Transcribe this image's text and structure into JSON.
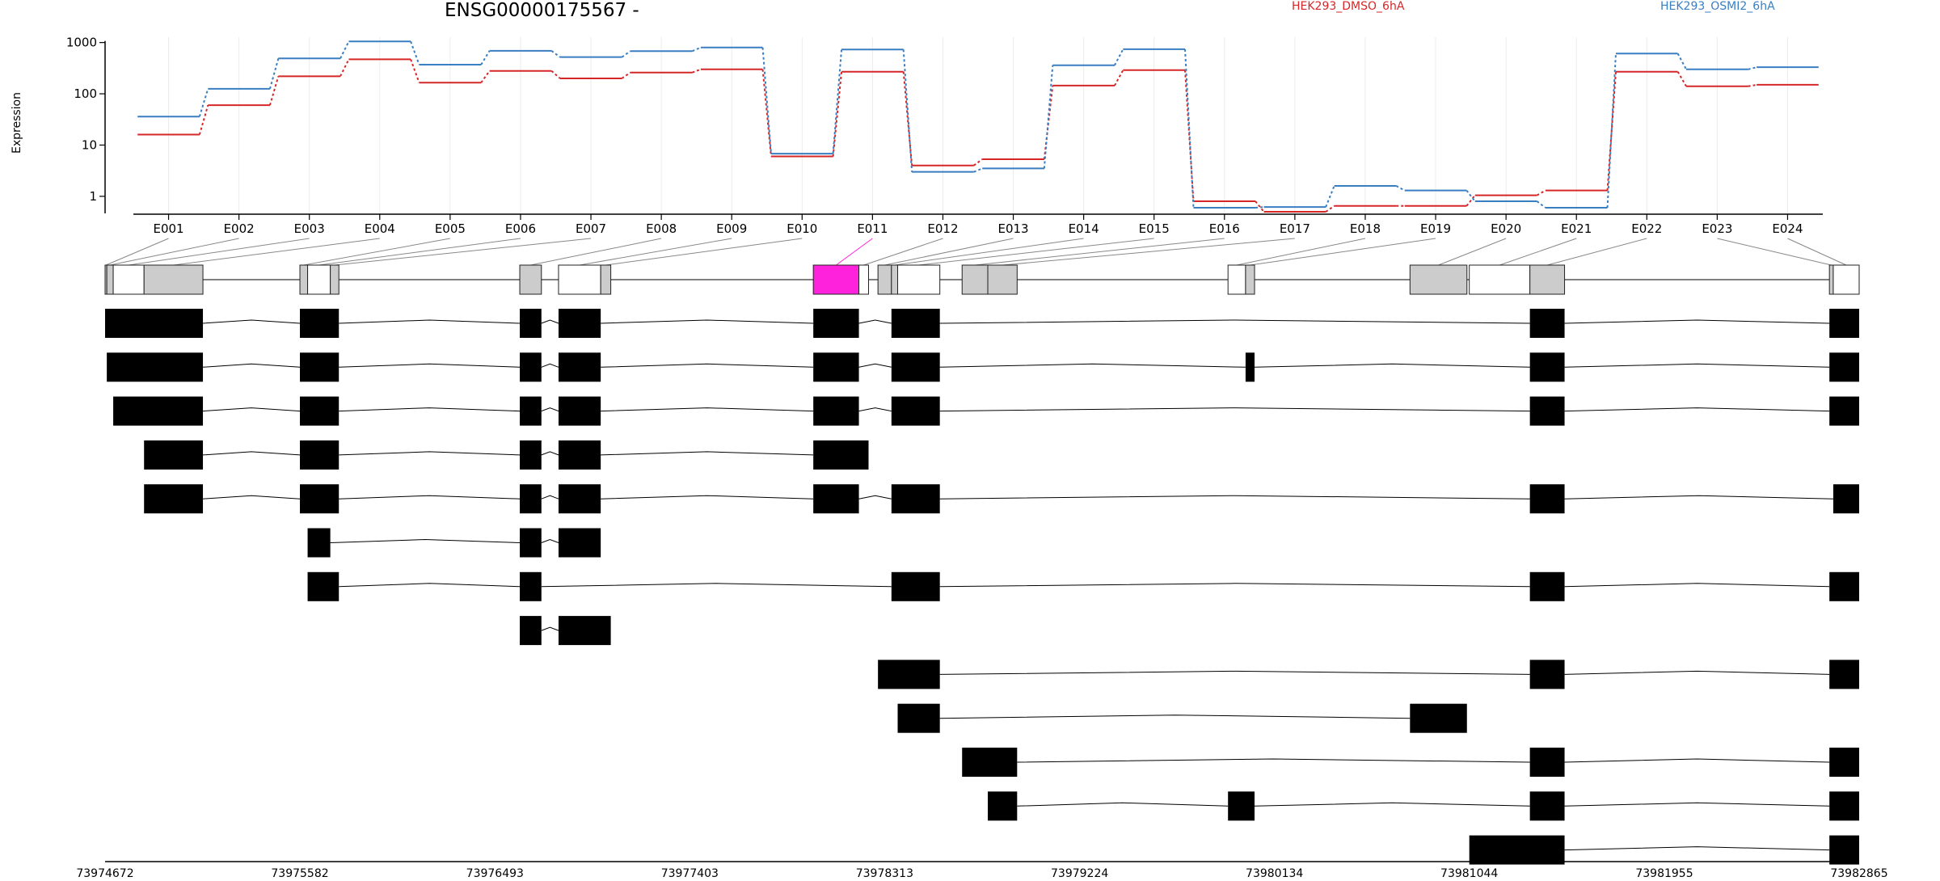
{
  "title": "ENSG00000175567 -",
  "colors": {
    "dmso": "#d62728",
    "osmi": "#3a7ec2",
    "highlight": "#ff22dd",
    "exon_fill": "#cccccc",
    "transcript": "#000000"
  },
  "chart_data": [
    {
      "type": "line",
      "ylabel": "Expression",
      "y_scale": "log",
      "y_ticks": [
        "1",
        "10",
        "100",
        "1000"
      ],
      "ylim": [
        0.5,
        1100
      ],
      "categories": [
        "E001",
        "E002",
        "E003",
        "E004",
        "E005",
        "E006",
        "E007",
        "E008",
        "E009",
        "E010",
        "E011",
        "E012",
        "E013",
        "E014",
        "E015",
        "E016",
        "E017",
        "E018",
        "E019",
        "E020",
        "E021",
        "E022",
        "E023",
        "E024"
      ],
      "series": [
        {
          "name": "HEK293_DMSO_6hA",
          "color": "#d62728",
          "values": [
            16,
            60,
            220,
            470,
            165,
            280,
            200,
            260,
            300,
            6,
            270,
            4,
            5.3,
            145,
            290,
            0.8,
            0.5,
            0.65,
            0.65,
            1.05,
            1.3,
            270,
            140,
            150
          ]
        },
        {
          "name": "HEK293_OSMI2_6hA",
          "color": "#3a7ec2",
          "values": [
            36,
            125,
            490,
            1050,
            370,
            690,
            520,
            680,
            800,
            6.8,
            730,
            3,
            3.5,
            360,
            740,
            0.6,
            0.62,
            1.6,
            1.3,
            0.8,
            0.6,
            610,
            300,
            330
          ]
        }
      ]
    },
    {
      "type": "gene-model",
      "genomic_ticks": [
        "73974672",
        "73975582",
        "73976493",
        "73977403",
        "73978313",
        "73979224",
        "73980134",
        "73981044",
        "73981955",
        "73982865"
      ],
      "highlighted_exon": "E011",
      "transcripts": [
        [
          [
            73974672,
            73975129
          ],
          [
            73975582,
            73975764
          ],
          [
            73976609,
            73976710
          ],
          [
            73976790,
            73976987
          ],
          [
            73977980,
            73978193
          ],
          [
            73978345,
            73978571
          ],
          [
            73981327,
            73981489
          ],
          [
            73982726,
            73982865
          ]
        ],
        [
          [
            73974680,
            73975129
          ],
          [
            73975582,
            73975764
          ],
          [
            73976609,
            73976710
          ],
          [
            73976790,
            73976987
          ],
          [
            73977980,
            73978193
          ],
          [
            73978345,
            73978571
          ],
          [
            73979999,
            73980041
          ],
          [
            73981327,
            73981489
          ],
          [
            73982726,
            73982865
          ]
        ],
        [
          [
            73974710,
            73975129
          ],
          [
            73975582,
            73975764
          ],
          [
            73976609,
            73976710
          ],
          [
            73976790,
            73976987
          ],
          [
            73977980,
            73978193
          ],
          [
            73978345,
            73978571
          ],
          [
            73981327,
            73981489
          ],
          [
            73982726,
            73982865
          ]
        ],
        [
          [
            73974854,
            73975129
          ],
          [
            73975582,
            73975764
          ],
          [
            73976609,
            73976710
          ],
          [
            73976790,
            73976987
          ],
          [
            73977980,
            73978238
          ]
        ],
        [
          [
            73974854,
            73975129
          ],
          [
            73975582,
            73975764
          ],
          [
            73976609,
            73976710
          ],
          [
            73976790,
            73976987
          ],
          [
            73977980,
            73978193
          ],
          [
            73978345,
            73978571
          ],
          [
            73981327,
            73981489
          ],
          [
            73982744,
            73982865
          ]
        ],
        [
          [
            73975618,
            73975724
          ],
          [
            73976609,
            73976710
          ],
          [
            73976790,
            73976987
          ]
        ],
        [
          [
            73975618,
            73975764
          ],
          [
            73976609,
            73976710
          ],
          [
            73978345,
            73978571
          ],
          [
            73981327,
            73981489
          ],
          [
            73982726,
            73982865
          ]
        ],
        [
          [
            73976609,
            73976710
          ],
          [
            73976790,
            73977034
          ]
        ],
        [
          [
            73978282,
            73978571
          ],
          [
            73981327,
            73981489
          ],
          [
            73982726,
            73982865
          ]
        ],
        [
          [
            73978374,
            73978571
          ],
          [
            73980767,
            73981033
          ]
        ],
        [
          [
            73978675,
            73978932
          ],
          [
            73981327,
            73981489
          ],
          [
            73982726,
            73982865
          ]
        ],
        [
          [
            73978795,
            73978932
          ],
          [
            73979917,
            73980041
          ],
          [
            73981327,
            73981489
          ],
          [
            73982726,
            73982865
          ]
        ],
        [
          [
            73981044,
            73981489
          ],
          [
            73982726,
            73982865
          ]
        ]
      ]
    }
  ]
}
